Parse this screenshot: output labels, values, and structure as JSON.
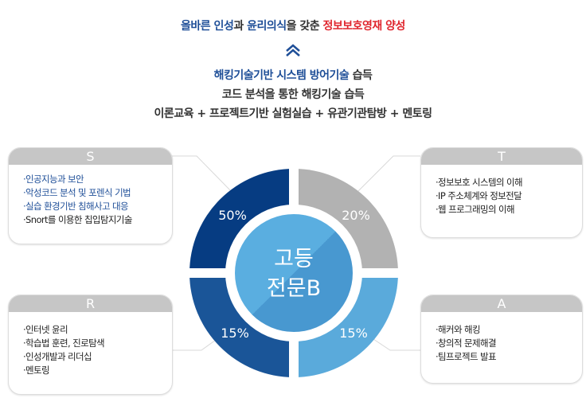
{
  "header": {
    "goal_parts": [
      {
        "text": "올바른 인성",
        "color": "blue"
      },
      {
        "text": "과 ",
        "color": "dark"
      },
      {
        "text": "윤리의식",
        "color": "blue"
      },
      {
        "text": "을 갖춘 ",
        "color": "dark"
      },
      {
        "text": "정보보호영재 양성",
        "color": "red"
      }
    ],
    "chevron_icon": "double-chevron-up",
    "line1_blue": "해킹기술기반 시스템 방어기술",
    "line1_rest": " 습득",
    "line2": "코드 분석을 통한 해킹기술 습득",
    "line3": "이론교육 + 프로젝트기반 실험실습 + 유관기관탐방 + 멘토링"
  },
  "center": {
    "line1": "고등",
    "line2": "전문B"
  },
  "quadrants": [
    {
      "letter": "S",
      "percent": "50%",
      "color": "#063c82",
      "items": [
        {
          "text": "·인공지능과 보안",
          "highlight": true
        },
        {
          "text": "·악성코드 분석 및 포렌식 기법",
          "highlight": true
        },
        {
          "text": "·실습 환경기반 침해사고 대응",
          "highlight": true
        },
        {
          "text": "·Snort를 이용한 칩입탐지기술",
          "highlight": false
        }
      ]
    },
    {
      "letter": "T",
      "percent": "20%",
      "color": "#b2b2b2",
      "items": [
        {
          "text": "·정보보호 시스템의 이해",
          "highlight": false
        },
        {
          "text": "·IP 주소체계와 정보전달",
          "highlight": false
        },
        {
          "text": "·웹 프로그래밍의 이해",
          "highlight": false
        }
      ]
    },
    {
      "letter": "R",
      "percent": "15%",
      "color": "#1a5598",
      "items": [
        {
          "text": "·인터넷 윤리",
          "highlight": false
        },
        {
          "text": "·학습법 훈련, 진로탐색",
          "highlight": false
        },
        {
          "text": "·인성개발과 리더십",
          "highlight": false
        },
        {
          "text": "·멘토링",
          "highlight": false
        }
      ]
    },
    {
      "letter": "A",
      "percent": "15%",
      "color": "#5aaadb",
      "items": [
        {
          "text": "·해커와 해킹",
          "highlight": false
        },
        {
          "text": "·창의적 문제해결",
          "highlight": false
        },
        {
          "text": "·팀프로젝트 발표",
          "highlight": false
        }
      ]
    }
  ],
  "colors": {
    "center_light": "#5aaee0",
    "center_dark": "#4898d0"
  }
}
